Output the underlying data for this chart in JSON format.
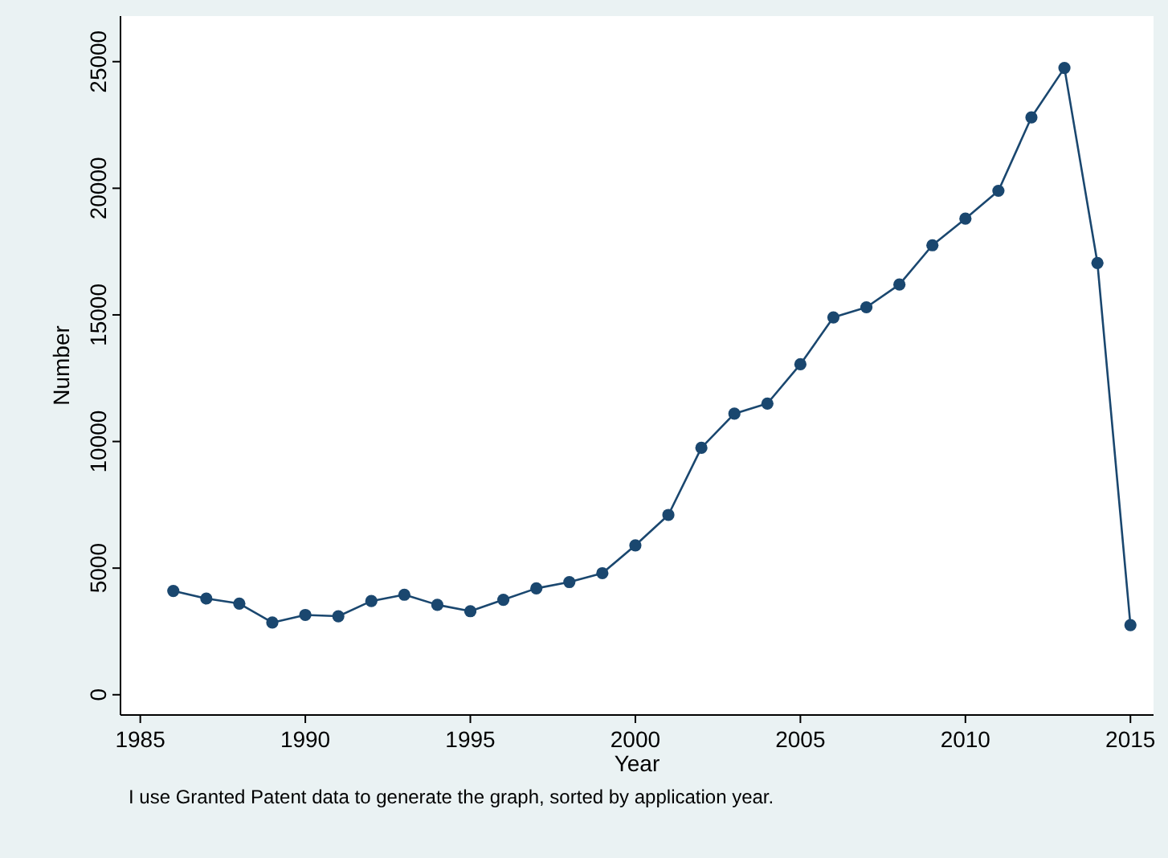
{
  "chart_data": {
    "type": "line",
    "xlabel": "Year",
    "ylabel": "Number",
    "annotations": [
      "I use Granted Patent data to generate the graph, sorted by application year."
    ],
    "x": [
      1986,
      1987,
      1988,
      1989,
      1990,
      1991,
      1992,
      1993,
      1994,
      1995,
      1996,
      1997,
      1998,
      1999,
      2000,
      2001,
      2002,
      2003,
      2004,
      2005,
      2006,
      2007,
      2008,
      2009,
      2010,
      2011,
      2012,
      2013,
      2014,
      2015
    ],
    "series": [
      {
        "color": "#1a476f",
        "values": [
          4100,
          3800,
          3600,
          2850,
          3150,
          3100,
          3700,
          3950,
          3550,
          3300,
          3750,
          4200,
          4450,
          4800,
          5900,
          7100,
          9750,
          11100,
          11500,
          13050,
          14900,
          15300,
          16200,
          17750,
          18800,
          19900,
          22800,
          24750,
          17050,
          2750
        ]
      }
    ],
    "xlim": [
      1984.4,
      2015.7
    ],
    "xticks": [
      1985,
      1990,
      1995,
      2000,
      2005,
      2010,
      2015
    ],
    "ylim": [
      -800,
      26800
    ],
    "yticks": [
      0,
      5000,
      10000,
      15000,
      20000,
      25000
    ],
    "grid": false,
    "marker": "circle",
    "line_style": "solid"
  }
}
